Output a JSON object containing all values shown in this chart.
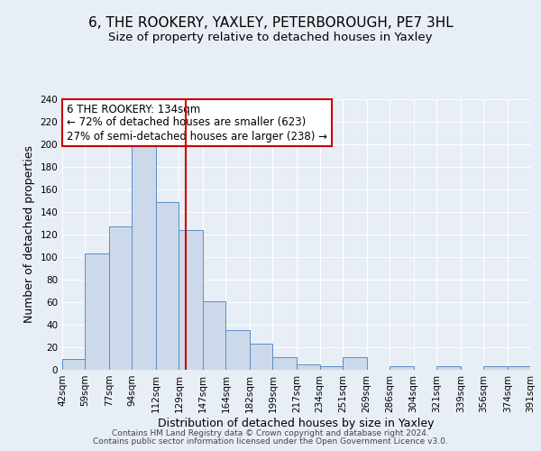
{
  "title1": "6, THE ROOKERY, YAXLEY, PETERBOROUGH, PE7 3HL",
  "title2": "Size of property relative to detached houses in Yaxley",
  "xlabel": "Distribution of detached houses by size in Yaxley",
  "ylabel": "Number of detached properties",
  "bin_edges": [
    42,
    59,
    77,
    94,
    112,
    129,
    147,
    164,
    182,
    199,
    217,
    234,
    251,
    269,
    286,
    304,
    321,
    339,
    356,
    374,
    391
  ],
  "bar_heights": [
    10,
    103,
    127,
    199,
    149,
    124,
    61,
    35,
    23,
    11,
    5,
    3,
    11,
    0,
    3,
    0,
    3,
    0,
    3,
    3
  ],
  "bar_face_color": "#ccd9ea",
  "bar_edge_color": "#5b8ec4",
  "vline_x": 134,
  "vline_color": "#cc0000",
  "annotation_line1": "6 THE ROOKERY: 134sqm",
  "annotation_line2": "← 72% of detached houses are smaller (623)",
  "annotation_line3": "27% of semi-detached houses are larger (238) →",
  "annotation_box_edge_color": "#cc0000",
  "ylim": [
    0,
    240
  ],
  "yticks": [
    0,
    20,
    40,
    60,
    80,
    100,
    120,
    140,
    160,
    180,
    200,
    220,
    240
  ],
  "bg_color": "#e8eef5",
  "plot_bg_color": "#e8eef5",
  "footer1": "Contains HM Land Registry data © Crown copyright and database right 2024.",
  "footer2": "Contains public sector information licensed under the Open Government Licence v3.0.",
  "title1_fontsize": 11,
  "title2_fontsize": 9.5,
  "xlabel_fontsize": 9,
  "ylabel_fontsize": 9,
  "tick_label_fontsize": 7.5,
  "annotation_fontsize": 8.5,
  "footer_fontsize": 6.5,
  "grid_color": "#ffffff",
  "grid_linewidth": 0.8
}
